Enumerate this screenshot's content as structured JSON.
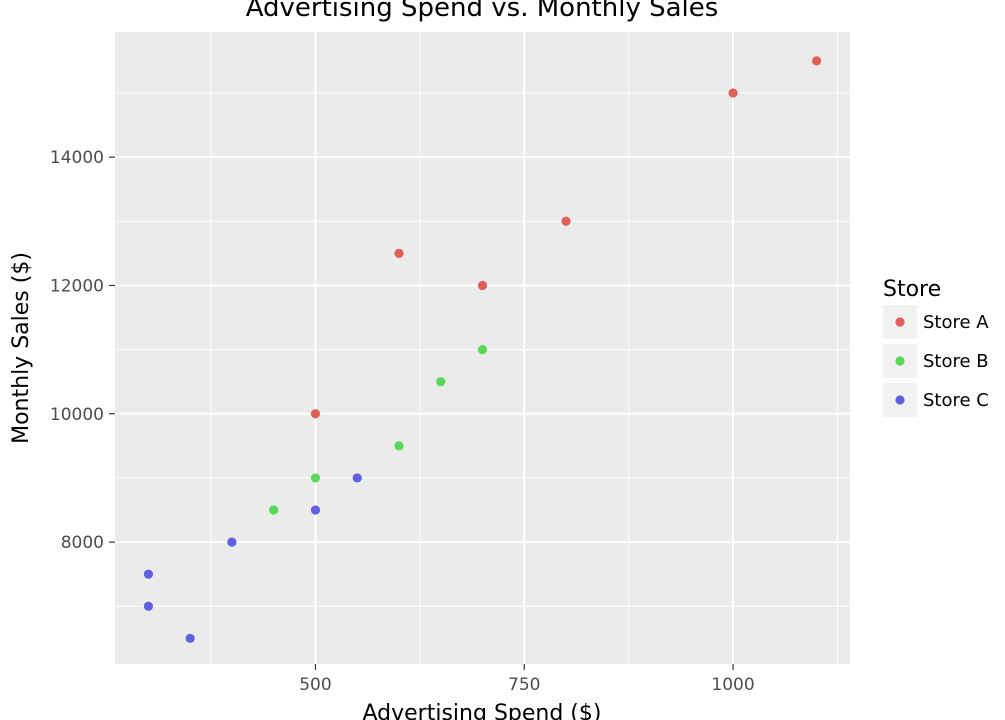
{
  "chart_data": {
    "type": "scatter",
    "title": "Advertising Spend vs. Monthly Sales",
    "xlabel": "Advertising Spend ($)",
    "ylabel": "Monthly Sales ($)",
    "xlim": [
      260,
      1140
    ],
    "ylim": [
      6100,
      15950
    ],
    "x_ticks": [
      500,
      750,
      1000
    ],
    "x_tick_labels": [
      "500",
      "750",
      "1000"
    ],
    "x_minor_ticks": [
      375,
      625,
      875,
      1125
    ],
    "y_ticks": [
      8000,
      10000,
      12000,
      14000
    ],
    "y_tick_labels": [
      "8000",
      "10000",
      "12000",
      "14000"
    ],
    "y_minor_ticks": [
      7000,
      9000,
      11000,
      13000,
      15000
    ],
    "grid": true,
    "legend": {
      "title": "Store",
      "position": "right"
    },
    "series": [
      {
        "name": "Store A",
        "color": "#E06058",
        "points": [
          {
            "x": 500,
            "y": 10000
          },
          {
            "x": 600,
            "y": 12500
          },
          {
            "x": 700,
            "y": 12000
          },
          {
            "x": 800,
            "y": 13000
          },
          {
            "x": 1000,
            "y": 15000
          },
          {
            "x": 1100,
            "y": 15500
          }
        ]
      },
      {
        "name": "Store B",
        "color": "#58D858",
        "points": [
          {
            "x": 450,
            "y": 8500
          },
          {
            "x": 500,
            "y": 9000
          },
          {
            "x": 600,
            "y": 9500
          },
          {
            "x": 650,
            "y": 10500
          },
          {
            "x": 700,
            "y": 11000
          }
        ]
      },
      {
        "name": "Store C",
        "color": "#6060E0",
        "points": [
          {
            "x": 300,
            "y": 7500
          },
          {
            "x": 300,
            "y": 7000
          },
          {
            "x": 350,
            "y": 6500
          },
          {
            "x": 400,
            "y": 8000
          },
          {
            "x": 500,
            "y": 8500
          },
          {
            "x": 550,
            "y": 9000
          }
        ]
      }
    ]
  }
}
